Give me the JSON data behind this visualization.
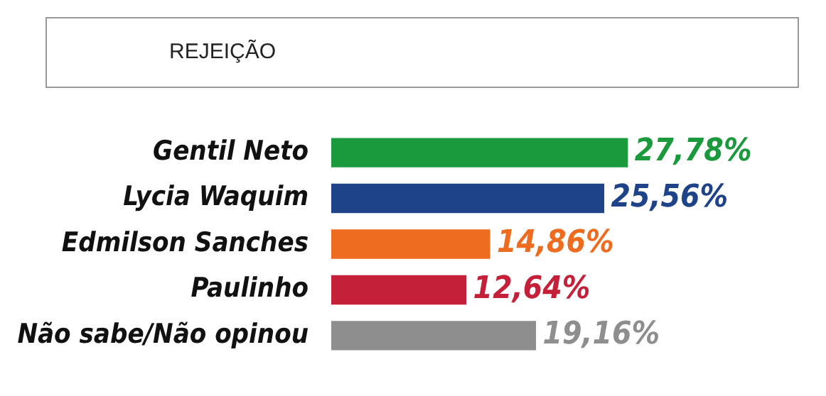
{
  "chart_data": {
    "type": "bar",
    "orientation": "horizontal",
    "title": "REJEIÇÃO",
    "categories": [
      "Gentil Neto",
      "Lycia Waquim",
      "Edmilson Sanches",
      "Paulinho",
      "Não sabe/Não opinou"
    ],
    "values": [
      27.78,
      25.56,
      14.86,
      12.64,
      19.16
    ],
    "colors": [
      "#1a9a3c",
      "#1f4388",
      "#ee6c1f",
      "#c5203a",
      "#8e8e8e"
    ],
    "value_labels": [
      "27,78%",
      "25,56%",
      "14,86%",
      "12,64%",
      "19,16%"
    ],
    "legend": false
  }
}
